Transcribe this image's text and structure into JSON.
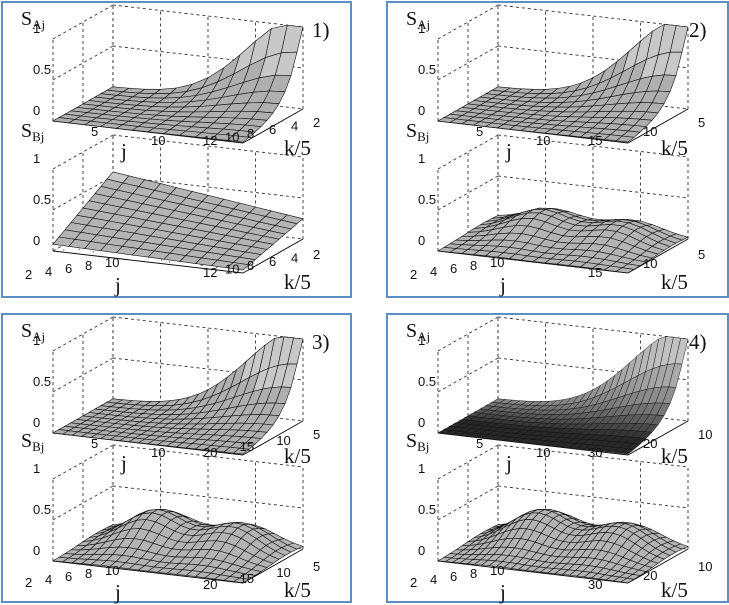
{
  "figure": {
    "panels": [
      {
        "label": "1)",
        "j_ticks": [
          "5",
          "10"
        ],
        "k_ticks": [
          "12",
          "10",
          "8",
          "6",
          "4",
          "2"
        ],
        "b_j_ticks": [
          "2",
          "4",
          "6",
          "8",
          "10"
        ],
        "b_k_ticks": [
          "12",
          "10",
          "8",
          "6",
          "4",
          "2"
        ]
      },
      {
        "label": "2)",
        "j_ticks": [
          "5",
          "10"
        ],
        "k_ticks": [
          "15",
          "10",
          "5"
        ],
        "b_j_ticks": [
          "2",
          "4",
          "6",
          "8",
          "10"
        ],
        "b_k_ticks": [
          "15",
          "10",
          "5"
        ]
      },
      {
        "label": "3)",
        "j_ticks": [
          "5",
          "10"
        ],
        "k_ticks": [
          "20",
          "15",
          "10",
          "5"
        ],
        "b_j_ticks": [
          "2",
          "4",
          "6",
          "8",
          "10"
        ],
        "b_k_ticks": [
          "20",
          "15",
          "10",
          "5"
        ]
      },
      {
        "label": "4)",
        "j_ticks": [
          "5",
          "10"
        ],
        "k_ticks": [
          "30",
          "20",
          "10"
        ],
        "b_j_ticks": [
          "2",
          "4",
          "6",
          "8",
          "10"
        ],
        "b_k_ticks": [
          "30",
          "20",
          "10"
        ]
      }
    ],
    "z_ticks": [
      "0",
      "0.5",
      "1"
    ],
    "z_ticks_alt": [
      "0",
      "0.5",
      "1"
    ],
    "top_z_label": "S",
    "top_z_sub": "Aj",
    "bottom_z_label": "S",
    "bottom_z_sub": "Bj",
    "j_label": "j",
    "k_label": "k/5"
  },
  "chart_data": [
    {
      "type": "surface",
      "panel": "1)",
      "variable": "S_Aj",
      "x_axis": "j",
      "y_axis": "k/5",
      "zlim": [
        0,
        1
      ],
      "z_ticks": [
        0,
        0.5,
        1
      ],
      "peak_value": 1.0,
      "j_range": [
        1,
        10
      ],
      "k_range": [
        1,
        13
      ]
    },
    {
      "type": "surface",
      "panel": "1)",
      "variable": "S_Bj",
      "x_axis": "j",
      "y_axis": "k/5",
      "zlim": [
        0,
        1
      ],
      "z_ticks": [
        0,
        0.5,
        1
      ],
      "peak_value": 0.55,
      "j_range": [
        1,
        10
      ],
      "k_range": [
        1,
        13
      ]
    },
    {
      "type": "surface",
      "panel": "2)",
      "variable": "S_Aj",
      "x_axis": "j",
      "y_axis": "k/5",
      "zlim": [
        0,
        1
      ],
      "z_ticks": [
        0,
        0.5,
        1
      ],
      "peak_value": 1.0,
      "j_range": [
        1,
        10
      ],
      "k_range": [
        1,
        18
      ]
    },
    {
      "type": "surface",
      "panel": "2)",
      "variable": "S_Bj",
      "x_axis": "j",
      "y_axis": "k/5",
      "zlim": [
        0,
        1
      ],
      "z_ticks": [
        0,
        0.5,
        1
      ],
      "peak_value": 0.3,
      "j_range": [
        1,
        10
      ],
      "k_range": [
        1,
        18
      ]
    },
    {
      "type": "surface",
      "panel": "3)",
      "variable": "S_Aj",
      "x_axis": "j",
      "y_axis": "k/5",
      "zlim": [
        0,
        1
      ],
      "z_ticks": [
        0,
        0.5,
        1
      ],
      "peak_value": 1.0,
      "j_range": [
        1,
        10
      ],
      "k_range": [
        1,
        24
      ]
    },
    {
      "type": "surface",
      "panel": "3)",
      "variable": "S_Bj",
      "x_axis": "j",
      "y_axis": "k/5",
      "zlim": [
        0,
        1
      ],
      "z_ticks": [
        0,
        0.5,
        1
      ],
      "peak_value": 0.4,
      "j_range": [
        1,
        10
      ],
      "k_range": [
        1,
        24
      ]
    },
    {
      "type": "surface",
      "panel": "4)",
      "variable": "S_Aj",
      "x_axis": "j",
      "y_axis": "k/5",
      "zlim": [
        0,
        1
      ],
      "z_ticks": [
        0,
        0.5,
        1
      ],
      "peak_value": 1.0,
      "j_range": [
        1,
        10
      ],
      "k_range": [
        1,
        35
      ]
    },
    {
      "type": "surface",
      "panel": "4)",
      "variable": "S_Bj",
      "x_axis": "j",
      "y_axis": "k/5",
      "zlim": [
        0,
        1
      ],
      "z_ticks": [
        0,
        0.5,
        1
      ],
      "peak_value": 0.4,
      "j_range": [
        1,
        10
      ],
      "k_range": [
        1,
        35
      ]
    }
  ]
}
